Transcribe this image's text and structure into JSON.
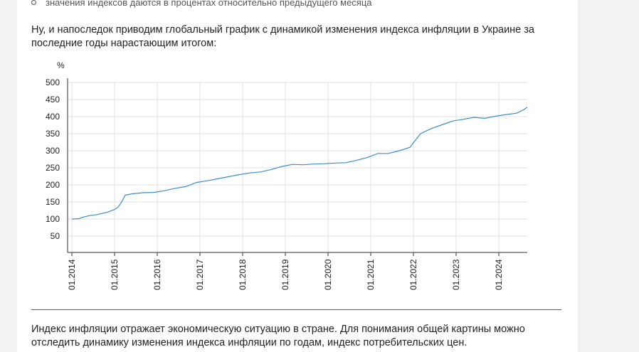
{
  "bullet_text": "значения индексов даются в процентах относительно предыдущего месяца",
  "intro_text": "Ну, и напоследок приводим глобальный график с динамикой изменения индекса инфляции в Украине за последние годы нарастающим итогом:",
  "outro_text": "Индекс инфляции отражает экономическую ситуацию в стране. Для понимания общей картины можно отследить динамику изменения индекса инфляции по годам, индекс потребительских цен.",
  "chart_data": {
    "type": "line",
    "title": "",
    "xlabel": "",
    "ylabel": "%",
    "ylim": [
      20,
      520
    ],
    "yticks": [
      50,
      100,
      150,
      200,
      250,
      300,
      350,
      400,
      450,
      500
    ],
    "xticks": [
      "01.2014",
      "01.2015",
      "01.2016",
      "01.2017",
      "01.2018",
      "01.2019",
      "01.2020",
      "01.2021",
      "01.2022",
      "01.2023",
      "01.2024"
    ],
    "grid": true,
    "line_color": "#3a8fc4",
    "series": [
      {
        "x": [
          "2014-01",
          "2014-03",
          "2014-04",
          "2014-06",
          "2014-08",
          "2014-11",
          "2015-01",
          "2015-02",
          "2015-03",
          "2015-04",
          "2015-06",
          "2015-09",
          "2015-12",
          "2016-03",
          "2016-06",
          "2016-09",
          "2016-12",
          "2017-03",
          "2017-06",
          "2017-09",
          "2017-12",
          "2018-03",
          "2018-06",
          "2018-09",
          "2018-12",
          "2019-03",
          "2019-06",
          "2019-09",
          "2019-12",
          "2020-03",
          "2020-06",
          "2020-09",
          "2020-12",
          "2021-03",
          "2021-06",
          "2021-09",
          "2021-12",
          "2022-03",
          "2022-06",
          "2022-09",
          "2022-12",
          "2023-03",
          "2023-06",
          "2023-09",
          "2023-12",
          "2024-03",
          "2024-06",
          "2024-08",
          "2024-09"
        ],
        "values": [
          100,
          101,
          105,
          110,
          113,
          120,
          128,
          135,
          150,
          170,
          174,
          177,
          178,
          183,
          190,
          195,
          207,
          212,
          218,
          224,
          230,
          235,
          238,
          245,
          254,
          260,
          259,
          261,
          262,
          264,
          265,
          272,
          280,
          292,
          292,
          300,
          310,
          350,
          365,
          376,
          387,
          392,
          398,
          395,
          401,
          406,
          410,
          420,
          428
        ]
      }
    ]
  }
}
